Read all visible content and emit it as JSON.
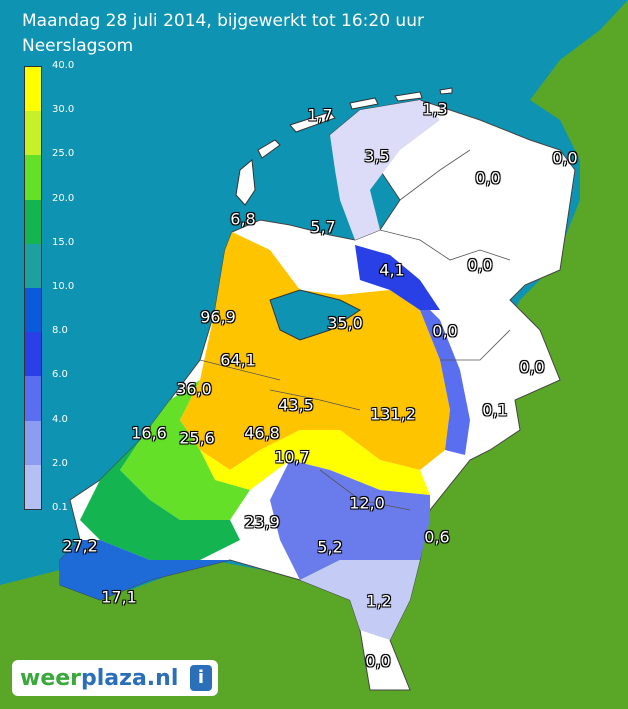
{
  "header": {
    "title": "Maandag 28 juli 2014, bijgewerkt tot 16:20 uur",
    "subtitle": "Neerslagsom"
  },
  "legend": {
    "labels": [
      "40.0",
      "30.0",
      "25.0",
      "20.0",
      "15.0",
      "10.0",
      "8.0",
      "6.0",
      "4.0",
      "2.0",
      "0.1"
    ],
    "colors": [
      "#ffff00",
      "#c8f028",
      "#64e028",
      "#14b450",
      "#1ea0a0",
      "#0a5adc",
      "#2840e6",
      "#5a6ef0",
      "#8c9cf0",
      "#b4c0f4",
      "#dcdcf8"
    ]
  },
  "values": [
    {
      "id": "v1",
      "text": "1,7"
    },
    {
      "id": "v2",
      "text": "1,3"
    },
    {
      "id": "v3",
      "text": "3,5"
    },
    {
      "id": "v4",
      "text": "0,0"
    },
    {
      "id": "v5",
      "text": "0,0"
    },
    {
      "id": "v6",
      "text": "6,8"
    },
    {
      "id": "v7",
      "text": "5,7"
    },
    {
      "id": "v8",
      "text": "4,1"
    },
    {
      "id": "v9",
      "text": "0,0"
    },
    {
      "id": "v10",
      "text": "96,9"
    },
    {
      "id": "v11",
      "text": "35,0"
    },
    {
      "id": "v12",
      "text": "0,0"
    },
    {
      "id": "v13",
      "text": "64,1"
    },
    {
      "id": "v14",
      "text": "0,0"
    },
    {
      "id": "v15",
      "text": "36,0"
    },
    {
      "id": "v16",
      "text": "43,5"
    },
    {
      "id": "v17",
      "text": "131,2"
    },
    {
      "id": "v18",
      "text": "0,1"
    },
    {
      "id": "v19",
      "text": "16,6"
    },
    {
      "id": "v20",
      "text": "25,6"
    },
    {
      "id": "v21",
      "text": "46,8"
    },
    {
      "id": "v22",
      "text": "10,7"
    },
    {
      "id": "v23",
      "text": "12,0"
    },
    {
      "id": "v24",
      "text": "23,9"
    },
    {
      "id": "v25",
      "text": "27,2"
    },
    {
      "id": "v26",
      "text": "5,2"
    },
    {
      "id": "v27",
      "text": "0,6"
    },
    {
      "id": "v28",
      "text": "17,1"
    },
    {
      "id": "v29",
      "text": "1,2"
    },
    {
      "id": "v30",
      "text": "0,0"
    }
  ],
  "logo": {
    "part1": "weer",
    "part2": "plaza.nl",
    "icon": "i"
  },
  "colors": {
    "sea": "#0e93b3",
    "land_outside": "#5aa728",
    "orange_max": "#ffc400"
  }
}
